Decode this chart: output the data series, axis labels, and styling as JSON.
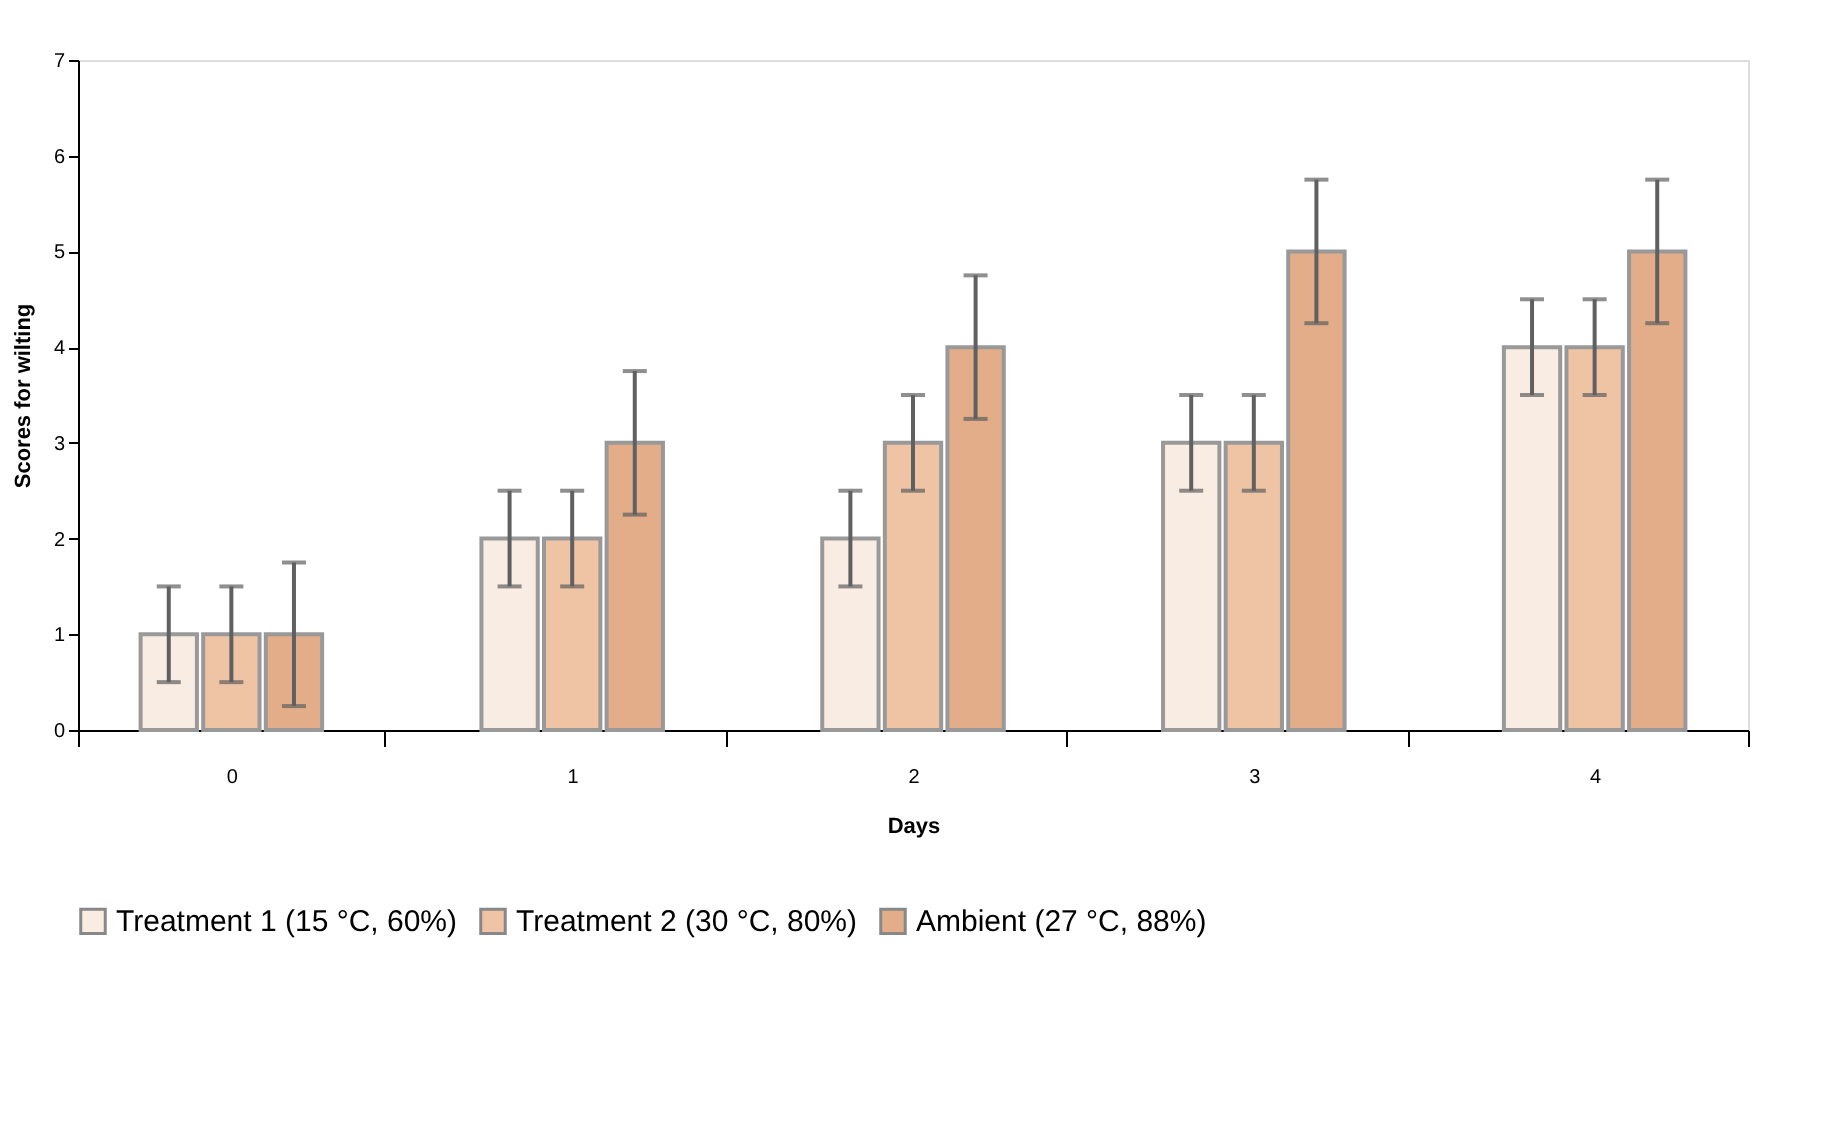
{
  "chart_data": {
    "type": "bar",
    "xlabel": "Days",
    "ylabel": "Scores for wilting",
    "categories": [
      "0",
      "1",
      "2",
      "3",
      "4"
    ],
    "series": [
      {
        "name": "Treatment 1 (15 °C, 60%)",
        "color": "#f9ece2",
        "values": [
          1,
          2,
          2,
          3,
          4
        ],
        "errors": [
          0.5,
          0.5,
          0.5,
          0.5,
          0.5
        ]
      },
      {
        "name": "Treatment 2 (30 °C, 80%)",
        "color": "#efc4a5",
        "values": [
          1,
          2,
          3,
          3,
          4
        ],
        "errors": [
          0.5,
          0.5,
          0.5,
          0.5,
          0.5
        ]
      },
      {
        "name": "Ambient  (27 °C, 88%)",
        "color": "#e2ad88",
        "values": [
          1,
          3,
          4,
          5,
          5
        ],
        "errors": [
          0.75,
          0.75,
          0.75,
          0.75,
          0.75
        ]
      }
    ],
    "ylim": [
      0,
      7
    ],
    "yticks": [
      0,
      1,
      2,
      3,
      4,
      5,
      6,
      7
    ],
    "grid": false,
    "legend": "bottom"
  }
}
